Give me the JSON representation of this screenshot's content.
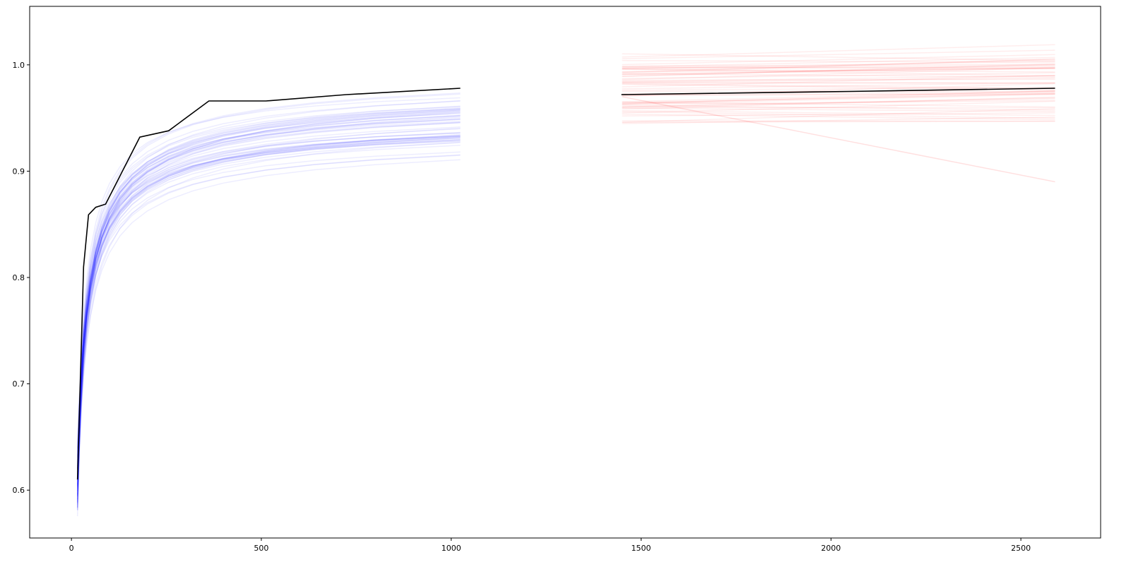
{
  "chart_data": {
    "type": "line",
    "title": "",
    "xlabel": "",
    "ylabel": "",
    "xlim": [
      -110,
      2710
    ],
    "ylim": [
      0.555,
      1.055
    ],
    "grid": false,
    "legend": "none",
    "x_ticks": [
      {
        "value": 0,
        "label": "0"
      },
      {
        "value": 500,
        "label": "500"
      },
      {
        "value": 1000,
        "label": "1000"
      },
      {
        "value": 1500,
        "label": "1500"
      },
      {
        "value": 2000,
        "label": "2000"
      },
      {
        "value": 2500,
        "label": "2500"
      }
    ],
    "y_ticks": [
      {
        "value": 0.6,
        "label": "0.6"
      },
      {
        "value": 0.7,
        "label": "0.7"
      },
      {
        "value": 0.8,
        "label": "0.8"
      },
      {
        "value": 0.9,
        "label": "0.9"
      },
      {
        "value": 1.0,
        "label": "1.0"
      }
    ],
    "colors": {
      "blue_band": "#0000ff",
      "red_band": "#ff0000",
      "mean_line": "#000000"
    },
    "band_opacity": 0.07,
    "blue_band": {
      "x": [
        16,
        20,
        25,
        32,
        40,
        50,
        64,
        80,
        100,
        128,
        160,
        200,
        256,
        320,
        400,
        512,
        640,
        800,
        1024
      ],
      "count": 60,
      "y_end_range": [
        0.94,
        0.999
      ],
      "y_start_range": [
        0.575,
        0.64
      ]
    },
    "red_band": {
      "x_start": 1450,
      "x_end": 2590,
      "count": 60,
      "y_start_range": [
        0.943,
        1.012
      ],
      "y_end_range": [
        0.947,
        1.03
      ],
      "outlier": {
        "y_start": 0.97,
        "y_end": 0.89
      }
    },
    "series": [
      {
        "color": "#000000",
        "x": [
          16,
          32,
          45,
          64,
          90,
          180,
          256,
          362,
          512,
          724,
          1024
        ],
        "y": [
          0.61,
          0.81,
          0.859,
          0.866,
          0.869,
          0.932,
          0.938,
          0.966,
          0.966,
          0.972,
          0.978
        ]
      },
      {
        "color": "#000000",
        "x": [
          1448,
          2048,
          2590
        ],
        "y": [
          0.972,
          0.975,
          0.978
        ]
      }
    ]
  }
}
